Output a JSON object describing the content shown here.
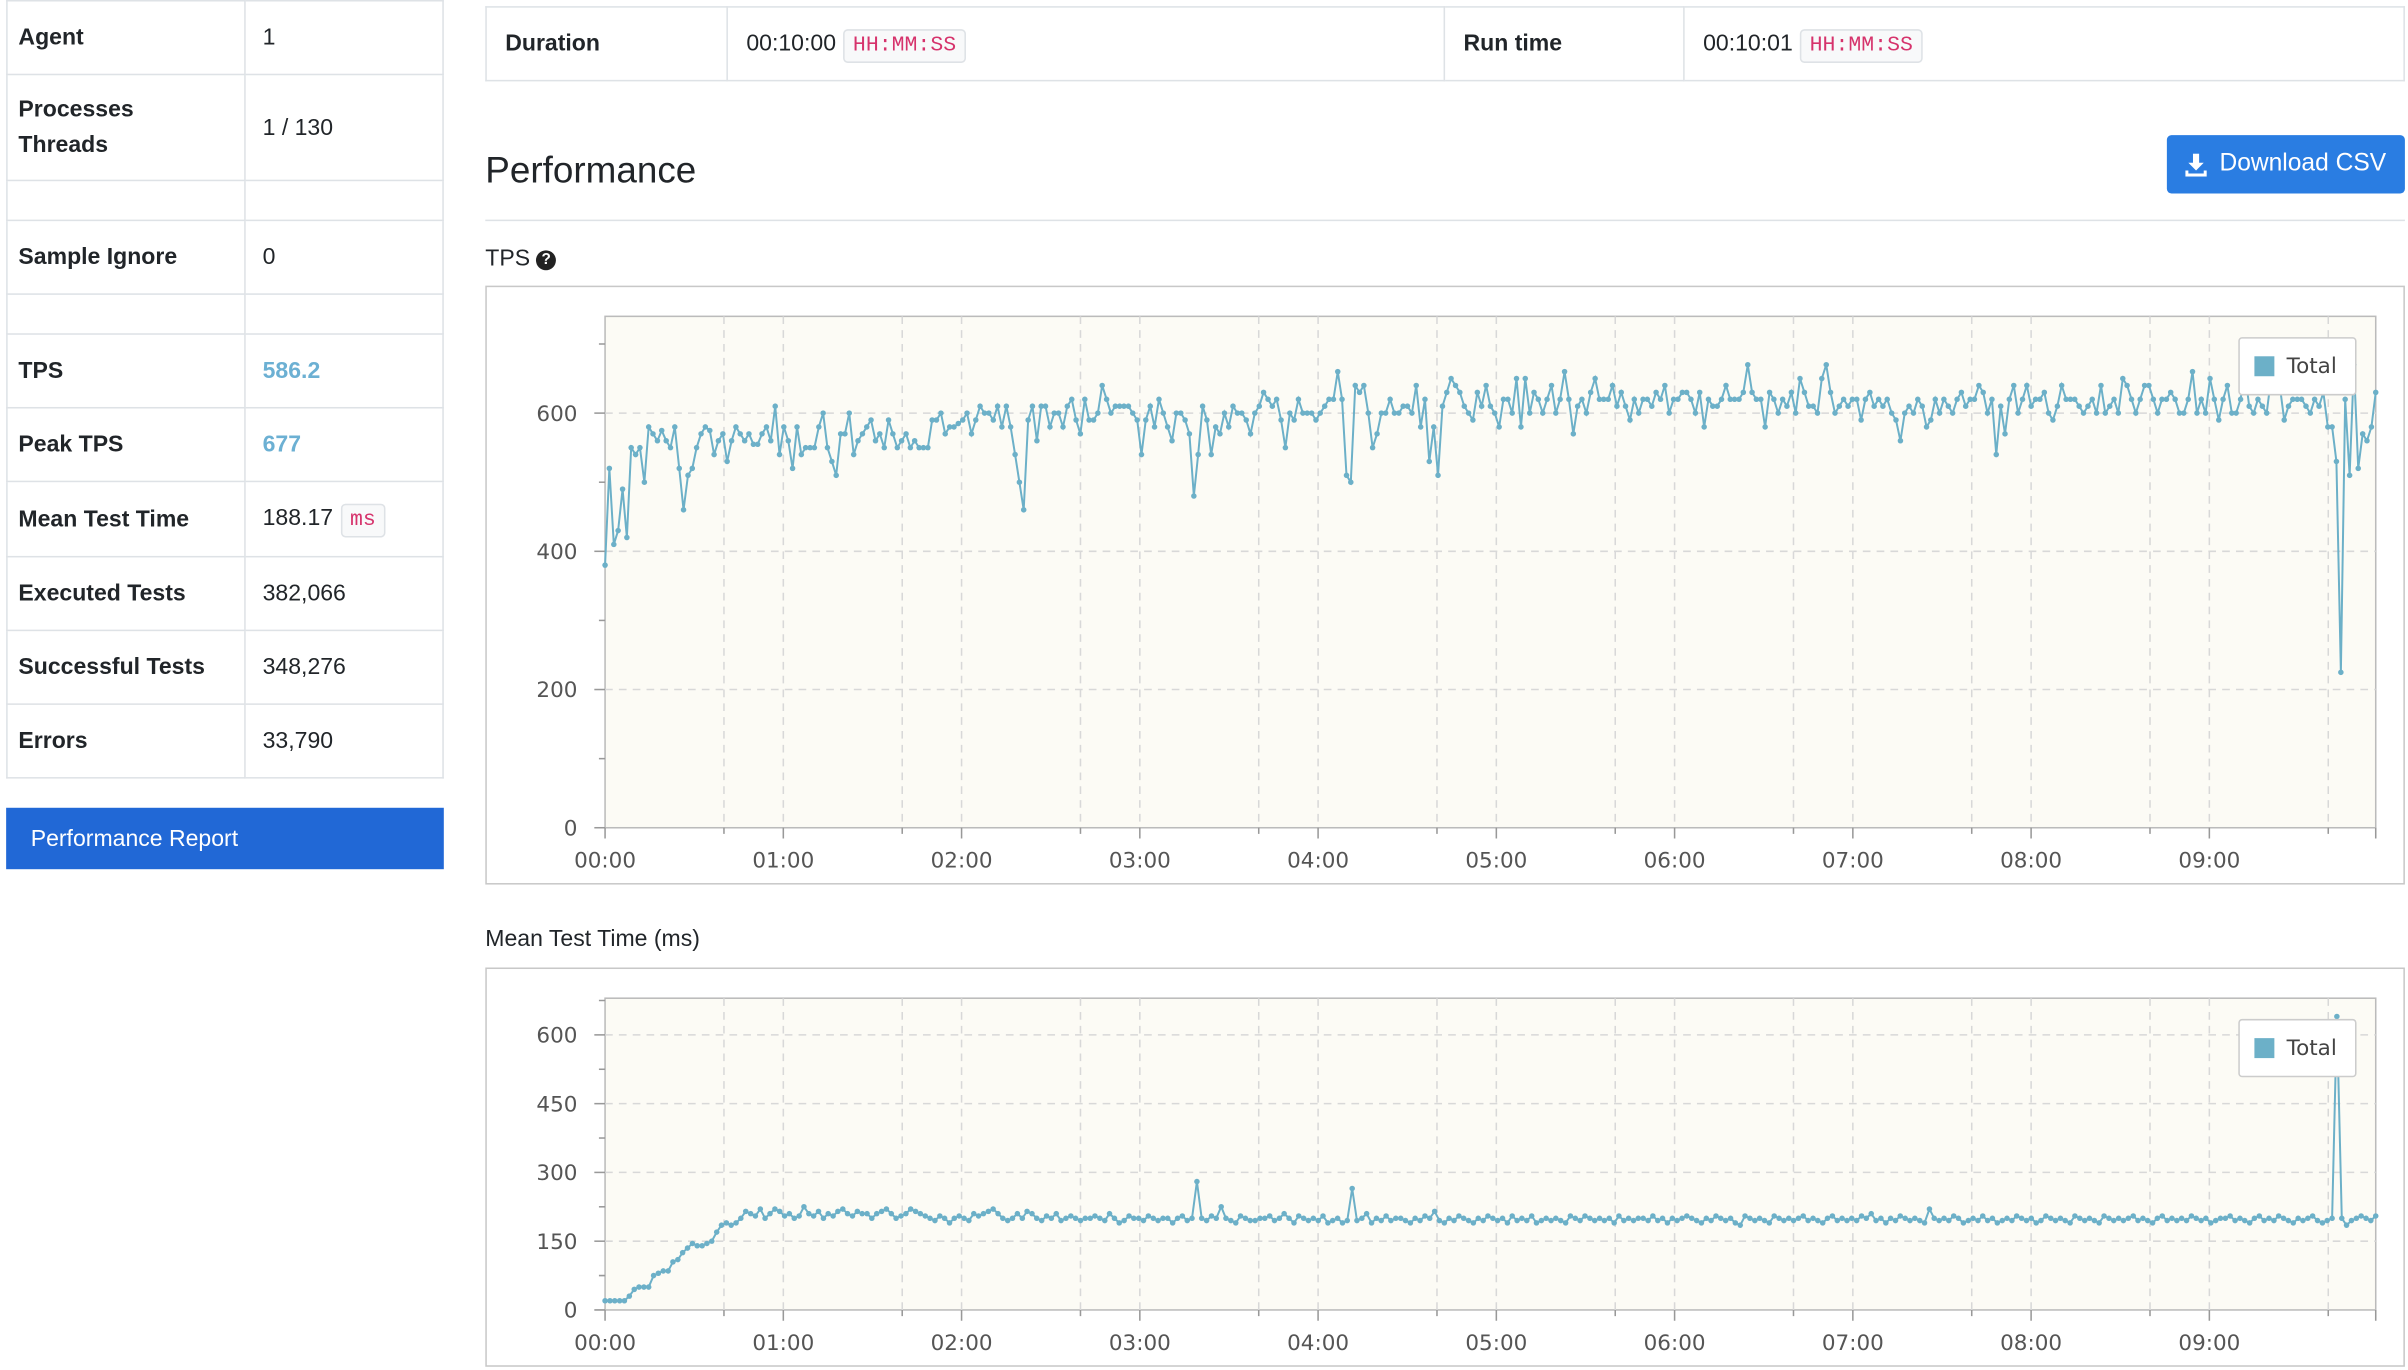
{
  "stats": [
    {
      "label": "Agent",
      "value": "1"
    },
    {
      "label": "Processes Threads",
      "label_lines": [
        "Processes",
        "Threads"
      ],
      "value": "1 / 130"
    },
    {
      "label": "",
      "value": ""
    },
    {
      "label": "Sample Ignore",
      "value": "0"
    },
    {
      "label": "",
      "value": ""
    },
    {
      "label": "TPS",
      "value": "586.2"
    },
    {
      "label": "Peak TPS",
      "value": "677"
    },
    {
      "label": "Mean Test Time",
      "value": "188.17",
      "unit": "ms"
    },
    {
      "label": "Executed Tests",
      "value": "382,066"
    },
    {
      "label": "Successful Tests",
      "value": "348,276"
    },
    {
      "label": "Errors",
      "value": "33,790"
    }
  ],
  "report_button": "Performance Report",
  "duration": {
    "label": "Duration",
    "value": "00:10:00",
    "format": "HH:MM:SS"
  },
  "runtime": {
    "label": "Run time",
    "value": "00:10:01",
    "format": "HH:MM:SS"
  },
  "performance_title": "Performance",
  "download_button": "Download CSV",
  "colors": {
    "series": "#6cb0c8",
    "plot_bg": "#fcfbf5",
    "grid": "#d8d8d8",
    "accent": "#2a7de2"
  },
  "chart_data": [
    {
      "type": "line",
      "title": "TPS",
      "legend": "top-right",
      "series": [
        {
          "name": "Total",
          "color": "#6cb0c8"
        }
      ],
      "xlim": [
        "00:00",
        "09:56"
      ],
      "x_ticks": [
        "00:00",
        "01:00",
        "02:00",
        "03:00",
        "04:00",
        "05:00",
        "06:00",
        "07:00",
        "08:00",
        "09:00"
      ],
      "ylim": [
        0,
        740
      ],
      "y_ticks": [
        0,
        200,
        400,
        600
      ],
      "y": [
        380,
        520,
        410,
        430,
        490,
        420,
        550,
        540,
        550,
        500,
        580,
        570,
        560,
        575,
        560,
        550,
        580,
        520,
        460,
        510,
        520,
        550,
        570,
        580,
        575,
        540,
        560,
        570,
        530,
        560,
        580,
        570,
        560,
        570,
        555,
        555,
        570,
        580,
        560,
        610,
        540,
        580,
        560,
        520,
        580,
        540,
        550,
        550,
        550,
        580,
        600,
        550,
        530,
        510,
        570,
        570,
        600,
        540,
        560,
        570,
        580,
        590,
        560,
        570,
        550,
        590,
        570,
        550,
        560,
        570,
        550,
        560,
        550,
        550,
        550,
        590,
        590,
        600,
        570,
        580,
        580,
        585,
        590,
        600,
        570,
        590,
        610,
        600,
        600,
        590,
        610,
        580,
        610,
        580,
        540,
        500,
        460,
        590,
        610,
        560,
        610,
        610,
        580,
        600,
        600,
        580,
        610,
        620,
        590,
        570,
        620,
        590,
        590,
        600,
        640,
        620,
        600,
        610,
        610,
        610,
        610,
        600,
        590,
        540,
        590,
        610,
        580,
        620,
        600,
        580,
        560,
        600,
        600,
        590,
        570,
        480,
        540,
        610,
        590,
        540,
        580,
        570,
        600,
        580,
        610,
        600,
        600,
        590,
        570,
        600,
        610,
        630,
        620,
        610,
        620,
        590,
        550,
        600,
        590,
        620,
        600,
        600,
        600,
        590,
        600,
        610,
        620,
        620,
        660,
        620,
        510,
        500,
        640,
        630,
        640,
        600,
        550,
        570,
        600,
        600,
        620,
        600,
        600,
        610,
        610,
        600,
        640,
        580,
        620,
        530,
        580,
        510,
        610,
        630,
        650,
        640,
        630,
        610,
        600,
        590,
        630,
        610,
        640,
        610,
        600,
        580,
        620,
        620,
        600,
        650,
        580,
        650,
        600,
        630,
        620,
        600,
        620,
        640,
        600,
        620,
        660,
        620,
        570,
        610,
        620,
        600,
        630,
        650,
        620,
        620,
        620,
        640,
        610,
        630,
        610,
        590,
        620,
        600,
        620,
        620,
        610,
        630,
        620,
        640,
        600,
        620,
        620,
        630,
        630,
        620,
        600,
        630,
        580,
        620,
        610,
        610,
        620,
        640,
        620,
        620,
        620,
        630,
        670,
        630,
        620,
        620,
        580,
        630,
        620,
        600,
        620,
        610,
        630,
        600,
        650,
        630,
        610,
        610,
        600,
        650,
        670,
        630,
        600,
        610,
        620,
        610,
        620,
        620,
        590,
        620,
        630,
        610,
        620,
        610,
        620,
        600,
        590,
        560,
        600,
        610,
        600,
        620,
        610,
        580,
        590,
        620,
        600,
        620,
        610,
        600,
        620,
        630,
        610,
        620,
        620,
        640,
        630,
        600,
        620,
        540,
        610,
        570,
        620,
        640,
        600,
        620,
        640,
        610,
        620,
        620,
        630,
        600,
        590,
        610,
        640,
        620,
        620,
        620,
        610,
        600,
        610,
        620,
        600,
        640,
        600,
        610,
        620,
        600,
        650,
        640,
        620,
        600,
        620,
        640,
        640,
        620,
        600,
        620,
        620,
        630,
        620,
        600,
        600,
        620,
        660,
        600,
        620,
        600,
        650,
        620,
        590,
        620,
        640,
        600,
        600,
        620,
        660,
        610,
        600,
        620,
        610,
        600,
        650,
        640,
        640,
        590,
        610,
        620,
        620,
        620,
        610,
        600,
        620,
        610,
        630,
        580,
        580,
        530,
        225,
        620,
        510,
        670,
        520,
        570,
        560,
        580,
        630
      ]
    },
    {
      "type": "line",
      "title": "Mean Test Time (ms)",
      "legend": "top-right",
      "series": [
        {
          "name": "Total",
          "color": "#6cb0c8"
        }
      ],
      "xlim": [
        "00:00",
        "09:56"
      ],
      "x_ticks": [
        "00:00",
        "01:00",
        "02:00",
        "03:00",
        "04:00",
        "05:00",
        "06:00",
        "07:00",
        "08:00",
        "09:00"
      ],
      "ylim": [
        0,
        680
      ],
      "y_ticks": [
        0,
        150,
        300,
        450,
        600
      ],
      "y": [
        20,
        20,
        20,
        20,
        20,
        30,
        45,
        50,
        50,
        50,
        75,
        80,
        85,
        85,
        105,
        110,
        125,
        135,
        145,
        140,
        140,
        145,
        150,
        170,
        185,
        190,
        185,
        190,
        200,
        215,
        210,
        205,
        220,
        200,
        210,
        220,
        215,
        205,
        210,
        200,
        205,
        225,
        210,
        205,
        215,
        200,
        210,
        205,
        215,
        220,
        210,
        205,
        215,
        210,
        210,
        200,
        210,
        215,
        220,
        210,
        200,
        205,
        210,
        220,
        215,
        210,
        205,
        200,
        195,
        205,
        200,
        190,
        200,
        205,
        200,
        195,
        210,
        205,
        210,
        215,
        220,
        210,
        200,
        195,
        200,
        210,
        200,
        215,
        210,
        200,
        195,
        205,
        200,
        210,
        195,
        200,
        205,
        200,
        195,
        200,
        200,
        205,
        200,
        195,
        210,
        200,
        190,
        195,
        205,
        200,
        200,
        195,
        205,
        200,
        195,
        200,
        200,
        190,
        200,
        205,
        195,
        200,
        280,
        200,
        195,
        205,
        200,
        225,
        200,
        195,
        190,
        205,
        200,
        195,
        195,
        200,
        200,
        205,
        195,
        200,
        210,
        200,
        190,
        205,
        200,
        195,
        200,
        195,
        205,
        190,
        195,
        200,
        190,
        195,
        265,
        195,
        200,
        210,
        190,
        200,
        195,
        205,
        195,
        200,
        200,
        195,
        190,
        200,
        195,
        205,
        200,
        215,
        195,
        190,
        200,
        195,
        205,
        200,
        195,
        190,
        200,
        195,
        205,
        200,
        195,
        200,
        190,
        205,
        195,
        200,
        195,
        205,
        190,
        195,
        200,
        195,
        200,
        195,
        190,
        205,
        200,
        195,
        205,
        200,
        195,
        200,
        195,
        200,
        190,
        205,
        195,
        200,
        195,
        200,
        200,
        195,
        205,
        195,
        200,
        190,
        200,
        195,
        200,
        205,
        200,
        195,
        190,
        200,
        195,
        205,
        200,
        195,
        200,
        190,
        185,
        205,
        200,
        195,
        200,
        195,
        190,
        205,
        200,
        195,
        200,
        195,
        200,
        205,
        195,
        200,
        195,
        190,
        200,
        205,
        195,
        200,
        195,
        200,
        195,
        205,
        200,
        210,
        195,
        200,
        190,
        200,
        195,
        205,
        200,
        195,
        200,
        195,
        190,
        220,
        200,
        195,
        200,
        195,
        205,
        200,
        190,
        195,
        200,
        195,
        205,
        195,
        200,
        190,
        195,
        200,
        195,
        205,
        200,
        195,
        200,
        190,
        195,
        205,
        200,
        195,
        200,
        195,
        190,
        205,
        200,
        195,
        200,
        195,
        190,
        205,
        200,
        195,
        200,
        195,
        200,
        205,
        195,
        200,
        195,
        190,
        200,
        205,
        195,
        200,
        195,
        200,
        195,
        205,
        200,
        195,
        200,
        190,
        195,
        200,
        200,
        205,
        195,
        200,
        195,
        190,
        200,
        205,
        195,
        200,
        195,
        205,
        200,
        195,
        190,
        200,
        195,
        200,
        205,
        195,
        190,
        195,
        200,
        640,
        200,
        185,
        195,
        200,
        205,
        200,
        195,
        205
      ]
    }
  ]
}
